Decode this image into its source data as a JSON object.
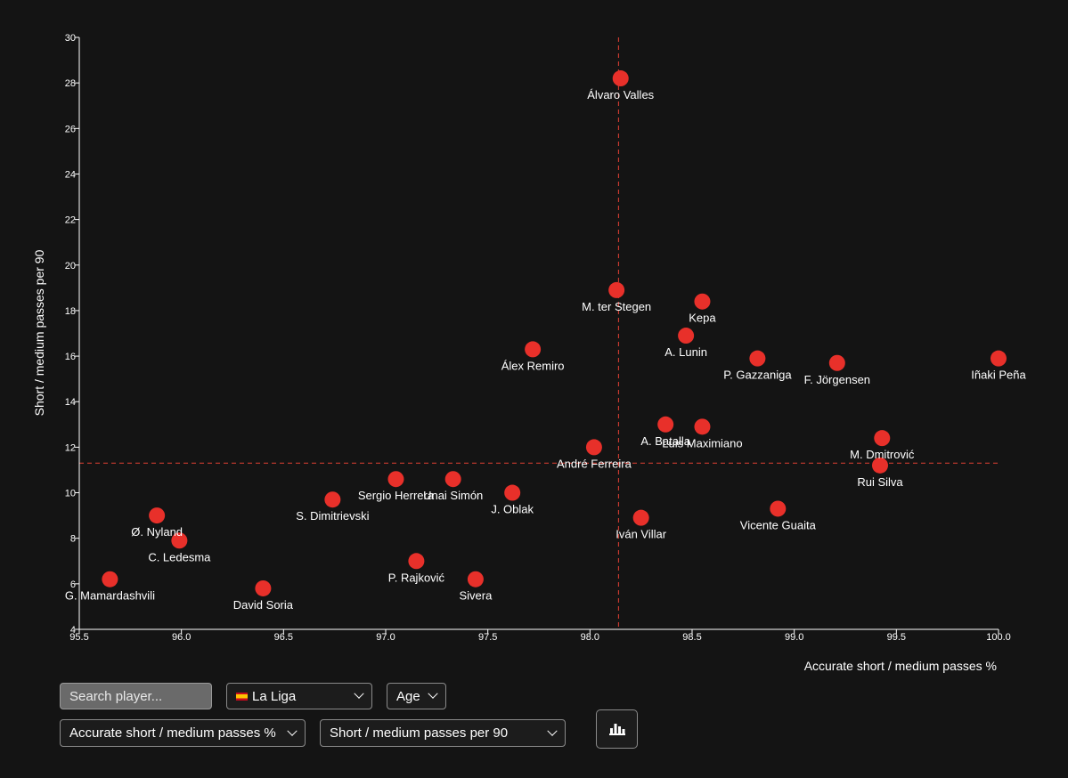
{
  "chart_data": {
    "type": "scatter",
    "xlabel": "Accurate short / medium passes %",
    "ylabel": "Short / medium passes per 90",
    "xlim": [
      95.5,
      100.0
    ],
    "ylim": [
      4,
      30
    ],
    "x_ticks": [
      "95.5",
      "96.0",
      "96.5",
      "97.0",
      "97.5",
      "98.0",
      "98.5",
      "99.0",
      "99.5",
      "100.0"
    ],
    "y_ticks": [
      "4",
      "6",
      "8",
      "10",
      "12",
      "14",
      "16",
      "18",
      "20",
      "22",
      "24",
      "26",
      "28",
      "30"
    ],
    "x_ref": 98.14,
    "y_ref": 11.3,
    "grid": false,
    "point_color": "#e8302a",
    "ref_line_color": "#c73a30",
    "points": [
      {
        "label": "Álvaro Valles",
        "x": 98.15,
        "y": 28.2
      },
      {
        "label": "M. ter Stegen",
        "x": 98.13,
        "y": 18.9
      },
      {
        "label": "Kepa",
        "x": 98.55,
        "y": 18.4
      },
      {
        "label": "A. Lunin",
        "x": 98.47,
        "y": 16.9
      },
      {
        "label": "Álex Remiro",
        "x": 97.72,
        "y": 16.3
      },
      {
        "label": "P. Gazzaniga",
        "x": 98.82,
        "y": 15.9
      },
      {
        "label": "F. Jörgensen",
        "x": 99.21,
        "y": 15.7
      },
      {
        "label": "Iñaki Peña",
        "x": 100.0,
        "y": 15.9
      },
      {
        "label": "A. Batalla",
        "x": 98.37,
        "y": 13.0
      },
      {
        "label": "Luis Maximiano",
        "x": 98.55,
        "y": 12.9
      },
      {
        "label": "André Ferreira",
        "x": 98.02,
        "y": 12.0
      },
      {
        "label": "M. Dmitrović",
        "x": 99.43,
        "y": 12.4
      },
      {
        "label": "Rui Silva",
        "x": 99.42,
        "y": 11.2
      },
      {
        "label": "Sergio Herrera",
        "x": 97.05,
        "y": 10.6
      },
      {
        "label": "Unai Simón",
        "x": 97.33,
        "y": 10.6
      },
      {
        "label": "J. Oblak",
        "x": 97.62,
        "y": 10.0
      },
      {
        "label": "S. Dimitrievski",
        "x": 96.74,
        "y": 9.7
      },
      {
        "label": "Vicente Guaita",
        "x": 98.92,
        "y": 9.3
      },
      {
        "label": "Iván Villar",
        "x": 98.25,
        "y": 8.9
      },
      {
        "label": "Ø. Nyland",
        "x": 95.88,
        "y": 9.0
      },
      {
        "label": "C. Ledesma",
        "x": 95.99,
        "y": 7.9
      },
      {
        "label": "P. Rajković",
        "x": 97.15,
        "y": 7.0
      },
      {
        "label": "G. Mamardashvili",
        "x": 95.65,
        "y": 6.2
      },
      {
        "label": "David Soria",
        "x": 96.4,
        "y": 5.8
      },
      {
        "label": "Sivera",
        "x": 97.44,
        "y": 6.2
      }
    ]
  },
  "controls": {
    "search": {
      "placeholder": "Search player...",
      "value": ""
    },
    "league": {
      "selected": "La Liga",
      "flag": "spain-flag-icon"
    },
    "age": {
      "selected": "Age"
    },
    "x_metric": {
      "selected": "Accurate short / medium passes %"
    },
    "y_metric": {
      "selected": "Short / medium passes per 90"
    },
    "chart_button": {
      "icon": "bar-chart-icon"
    }
  }
}
